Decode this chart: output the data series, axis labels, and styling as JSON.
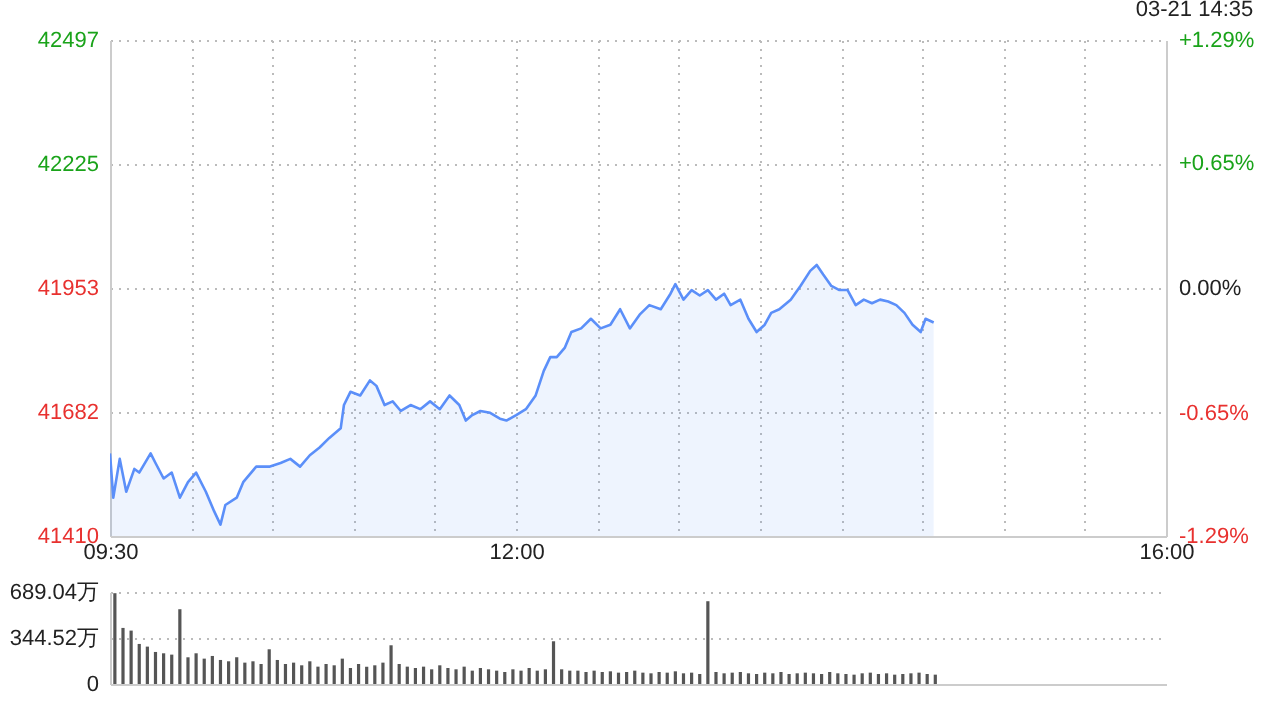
{
  "chart_data": [
    {
      "type": "area",
      "subtitle": "03-21 14:35",
      "xlim": [
        9.5,
        16
      ],
      "xticks": [
        {
          "value": 9.5,
          "label": "09:30"
        },
        {
          "value": 10,
          "label": null
        },
        {
          "value": 10.5,
          "label": null
        },
        {
          "value": 11,
          "label": null
        },
        {
          "value": 11.5,
          "label": null
        },
        {
          "value": 12,
          "label": "12:00"
        },
        {
          "value": 12.5,
          "label": null
        },
        {
          "value": 13,
          "label": null
        },
        {
          "value": 13.5,
          "label": null
        },
        {
          "value": 14,
          "label": null
        },
        {
          "value": 14.5,
          "label": null
        },
        {
          "value": 15,
          "label": null
        },
        {
          "value": 15.5,
          "label": null
        },
        {
          "value": 16,
          "label": "16:00"
        }
      ],
      "ylim": [
        41410,
        42497
      ],
      "yticks": [
        41410,
        41682,
        41953,
        42225,
        42497
      ],
      "y2lim": [
        -1.29,
        1.29
      ],
      "y2ticks": [
        {
          "value": -1.29,
          "label": "-1.29%"
        },
        {
          "value": -0.65,
          "label": "-0.65%"
        },
        {
          "value": 0,
          "label": "0.00%"
        },
        {
          "value": 0.65,
          "label": "+0.65%"
        },
        {
          "value": 1.29,
          "label": "+1.29%"
        }
      ],
      "grid": true,
      "marker": "none",
      "line_style": "solid",
      "series": [
        {
          "color": "#5b8ff9",
          "x": [
            9.5,
            9.52,
            9.56,
            9.6,
            9.65,
            9.68,
            9.75,
            9.78,
            9.83,
            9.88,
            9.93,
            9.98,
            10.03,
            10.09,
            10.14,
            10.18,
            10.21,
            10.28,
            10.32,
            10.4,
            10.48,
            10.55,
            10.61,
            10.67,
            10.73,
            10.79,
            10.85,
            10.92,
            10.94,
            10.98,
            11.04,
            11.1,
            11.14,
            11.19,
            11.24,
            11.29,
            11.35,
            11.41,
            11.47,
            11.53,
            11.59,
            11.65,
            11.69,
            11.73,
            11.78,
            11.84,
            11.9,
            11.94,
            12.0,
            12.06,
            12.12,
            12.17,
            12.21,
            12.25,
            12.3,
            12.34,
            12.4,
            12.46,
            12.52,
            12.58,
            12.64,
            12.7,
            12.76,
            12.82,
            12.89,
            12.95,
            12.98,
            13.03,
            13.08,
            13.13,
            13.18,
            13.23,
            13.28,
            13.32,
            13.38,
            13.43,
            13.48,
            13.53,
            13.57,
            13.62,
            13.69,
            13.75,
            13.81,
            13.85,
            13.89,
            13.94,
            13.99,
            14.04,
            14.09,
            14.14,
            14.19,
            14.24,
            14.29,
            14.34,
            14.39,
            14.44,
            14.49,
            14.52,
            14.57
          ],
          "values": [
            41591,
            41494,
            41579,
            41507,
            41557,
            41549,
            41591,
            41570,
            41536,
            41549,
            41494,
            41528,
            41549,
            41507,
            41465,
            41435,
            41478,
            41494,
            41528,
            41562,
            41562,
            41570,
            41579,
            41562,
            41587,
            41604,
            41625,
            41646,
            41697,
            41726,
            41718,
            41751,
            41739,
            41697,
            41705,
            41684,
            41697,
            41688,
            41705,
            41688,
            41718,
            41697,
            41663,
            41675,
            41684,
            41680,
            41667,
            41663,
            41675,
            41688,
            41718,
            41772,
            41802,
            41802,
            41823,
            41857,
            41865,
            41886,
            41865,
            41873,
            41907,
            41865,
            41895,
            41916,
            41907,
            41941,
            41962,
            41928,
            41949,
            41937,
            41949,
            41928,
            41941,
            41916,
            41928,
            41886,
            41857,
            41873,
            41899,
            41907,
            41928,
            41958,
            41991,
            42004,
            41983,
            41958,
            41949,
            41949,
            41916,
            41928,
            41920,
            41928,
            41924,
            41916,
            41899,
            41873,
            41857,
            41886,
            41878
          ]
        }
      ]
    },
    {
      "type": "bar",
      "xlim": [
        9.5,
        16
      ],
      "ylim": [
        0,
        689.04
      ],
      "yticks": [
        0,
        {
          "value": 344.52,
          "label": "344.52万"
        },
        {
          "value": 689.04,
          "label": "689.04万"
        }
      ],
      "grid": "y",
      "tick_labels": "y",
      "series": [
        {
          "color": "#555555",
          "x": [
            9.53,
            9.58,
            9.63,
            9.68,
            9.73,
            9.78,
            9.83,
            9.88,
            9.93,
            9.98,
            10.03,
            10.08,
            10.13,
            10.18,
            10.23,
            10.28,
            10.33,
            10.38,
            10.43,
            10.48,
            10.53,
            10.58,
            10.63,
            10.68,
            10.73,
            10.78,
            10.83,
            10.88,
            10.93,
            10.98,
            11.03,
            11.08,
            11.13,
            11.18,
            11.23,
            11.28,
            11.33,
            11.38,
            11.43,
            11.48,
            11.53,
            11.58,
            11.63,
            11.68,
            11.73,
            11.78,
            11.83,
            11.88,
            11.93,
            11.98,
            12.03,
            12.08,
            12.13,
            12.18,
            12.23,
            12.28,
            12.33,
            12.38,
            12.43,
            12.48,
            12.53,
            12.58,
            12.63,
            12.68,
            12.73,
            12.78,
            12.83,
            12.88,
            12.93,
            12.98,
            13.03,
            13.08,
            13.13,
            13.18,
            13.23,
            13.28,
            13.33,
            13.38,
            13.43,
            13.48,
            13.53,
            13.58,
            13.63,
            13.68,
            13.73,
            13.78,
            13.83,
            13.88,
            13.93,
            13.98,
            14.03,
            14.08,
            14.13,
            14.18,
            14.23,
            14.28,
            14.33,
            14.38,
            14.43,
            14.48,
            14.53,
            14.58
          ],
          "values": [
            680,
            420,
            400,
            300,
            280,
            240,
            230,
            220,
            560,
            200,
            230,
            190,
            210,
            180,
            170,
            200,
            160,
            170,
            150,
            260,
            180,
            150,
            160,
            140,
            170,
            130,
            150,
            140,
            190,
            120,
            150,
            130,
            140,
            160,
            290,
            150,
            130,
            120,
            130,
            110,
            140,
            120,
            110,
            130,
            100,
            120,
            110,
            100,
            90,
            110,
            100,
            120,
            100,
            110,
            320,
            110,
            100,
            100,
            90,
            100,
            90,
            95,
            85,
            90,
            100,
            85,
            80,
            90,
            85,
            95,
            80,
            85,
            75,
            620,
            90,
            80,
            85,
            90,
            80,
            75,
            85,
            80,
            90,
            75,
            80,
            85,
            80,
            75,
            90,
            80,
            75,
            70,
            80,
            85,
            75,
            80,
            70,
            75,
            80,
            85,
            75,
            70
          ]
        }
      ]
    }
  ]
}
